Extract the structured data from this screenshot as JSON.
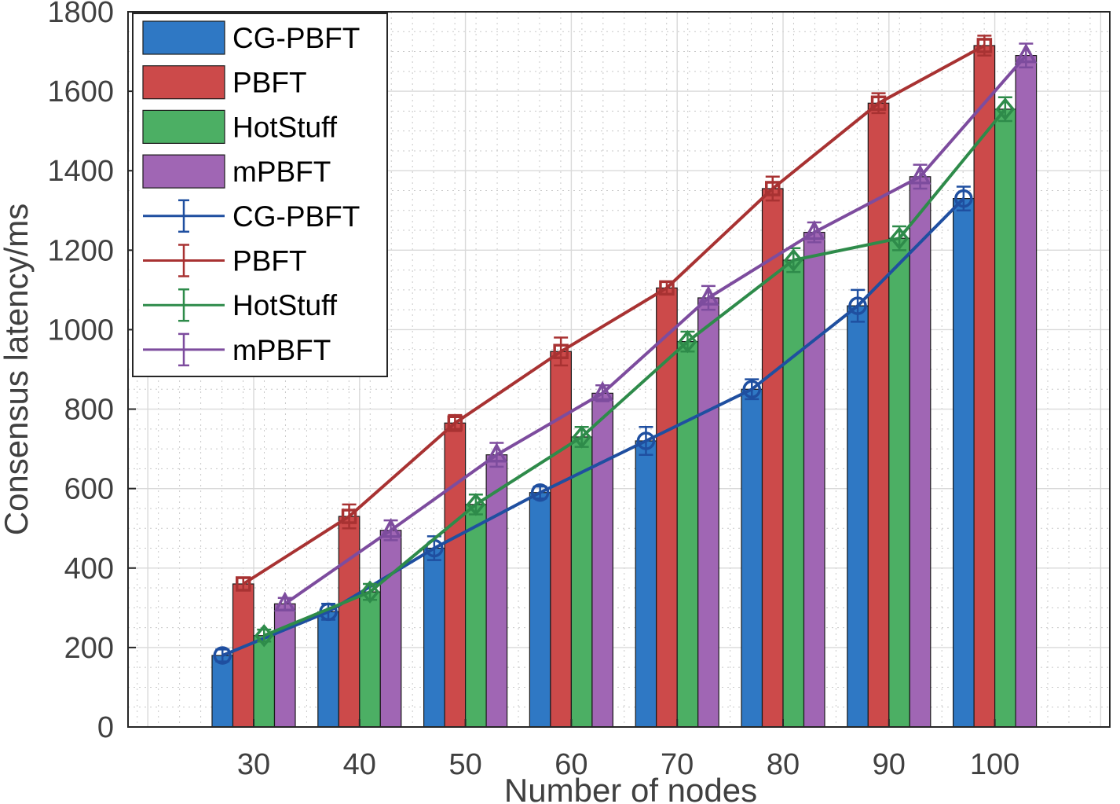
{
  "chart_data": {
    "type": "bar",
    "title": "",
    "xlabel": "Number of nodes",
    "ylabel": "Consensus latency/ms",
    "categories": [
      "30",
      "40",
      "50",
      "60",
      "70",
      "80",
      "90",
      "100"
    ],
    "ylim": [
      0,
      1800
    ],
    "yticks": [
      0,
      200,
      400,
      600,
      800,
      1000,
      1200,
      1400,
      1600,
      1800
    ],
    "grid": true,
    "minor_grid": true,
    "legend_position": "top-left",
    "series": [
      {
        "name": "CG-PBFT",
        "color": "#2f78c4",
        "line_color": "#1f4fa0",
        "marker": "circle",
        "values": [
          180,
          290,
          450,
          590,
          720,
          850,
          1060,
          1330
        ],
        "errors": [
          15,
          20,
          30,
          15,
          35,
          25,
          40,
          30
        ]
      },
      {
        "name": "PBFT",
        "color": "#cc4a4a",
        "line_color": "#a83232",
        "marker": "square",
        "values": [
          360,
          530,
          765,
          945,
          1105,
          1355,
          1570,
          1715
        ],
        "errors": [
          15,
          30,
          20,
          35,
          15,
          30,
          25,
          25
        ]
      },
      {
        "name": "HotStuff",
        "color": "#4caf64",
        "line_color": "#2e8b4a",
        "marker": "diamond",
        "values": [
          230,
          340,
          560,
          730,
          970,
          1175,
          1230,
          1555
        ],
        "errors": [
          15,
          20,
          25,
          25,
          25,
          30,
          30,
          30
        ]
      },
      {
        "name": "mPBFT",
        "color": "#a066b4",
        "line_color": "#7d4c9e",
        "marker": "triangle",
        "values": [
          310,
          495,
          685,
          840,
          1080,
          1245,
          1385,
          1690
        ],
        "errors": [
          15,
          25,
          30,
          20,
          30,
          25,
          30,
          30
        ]
      }
    ]
  }
}
